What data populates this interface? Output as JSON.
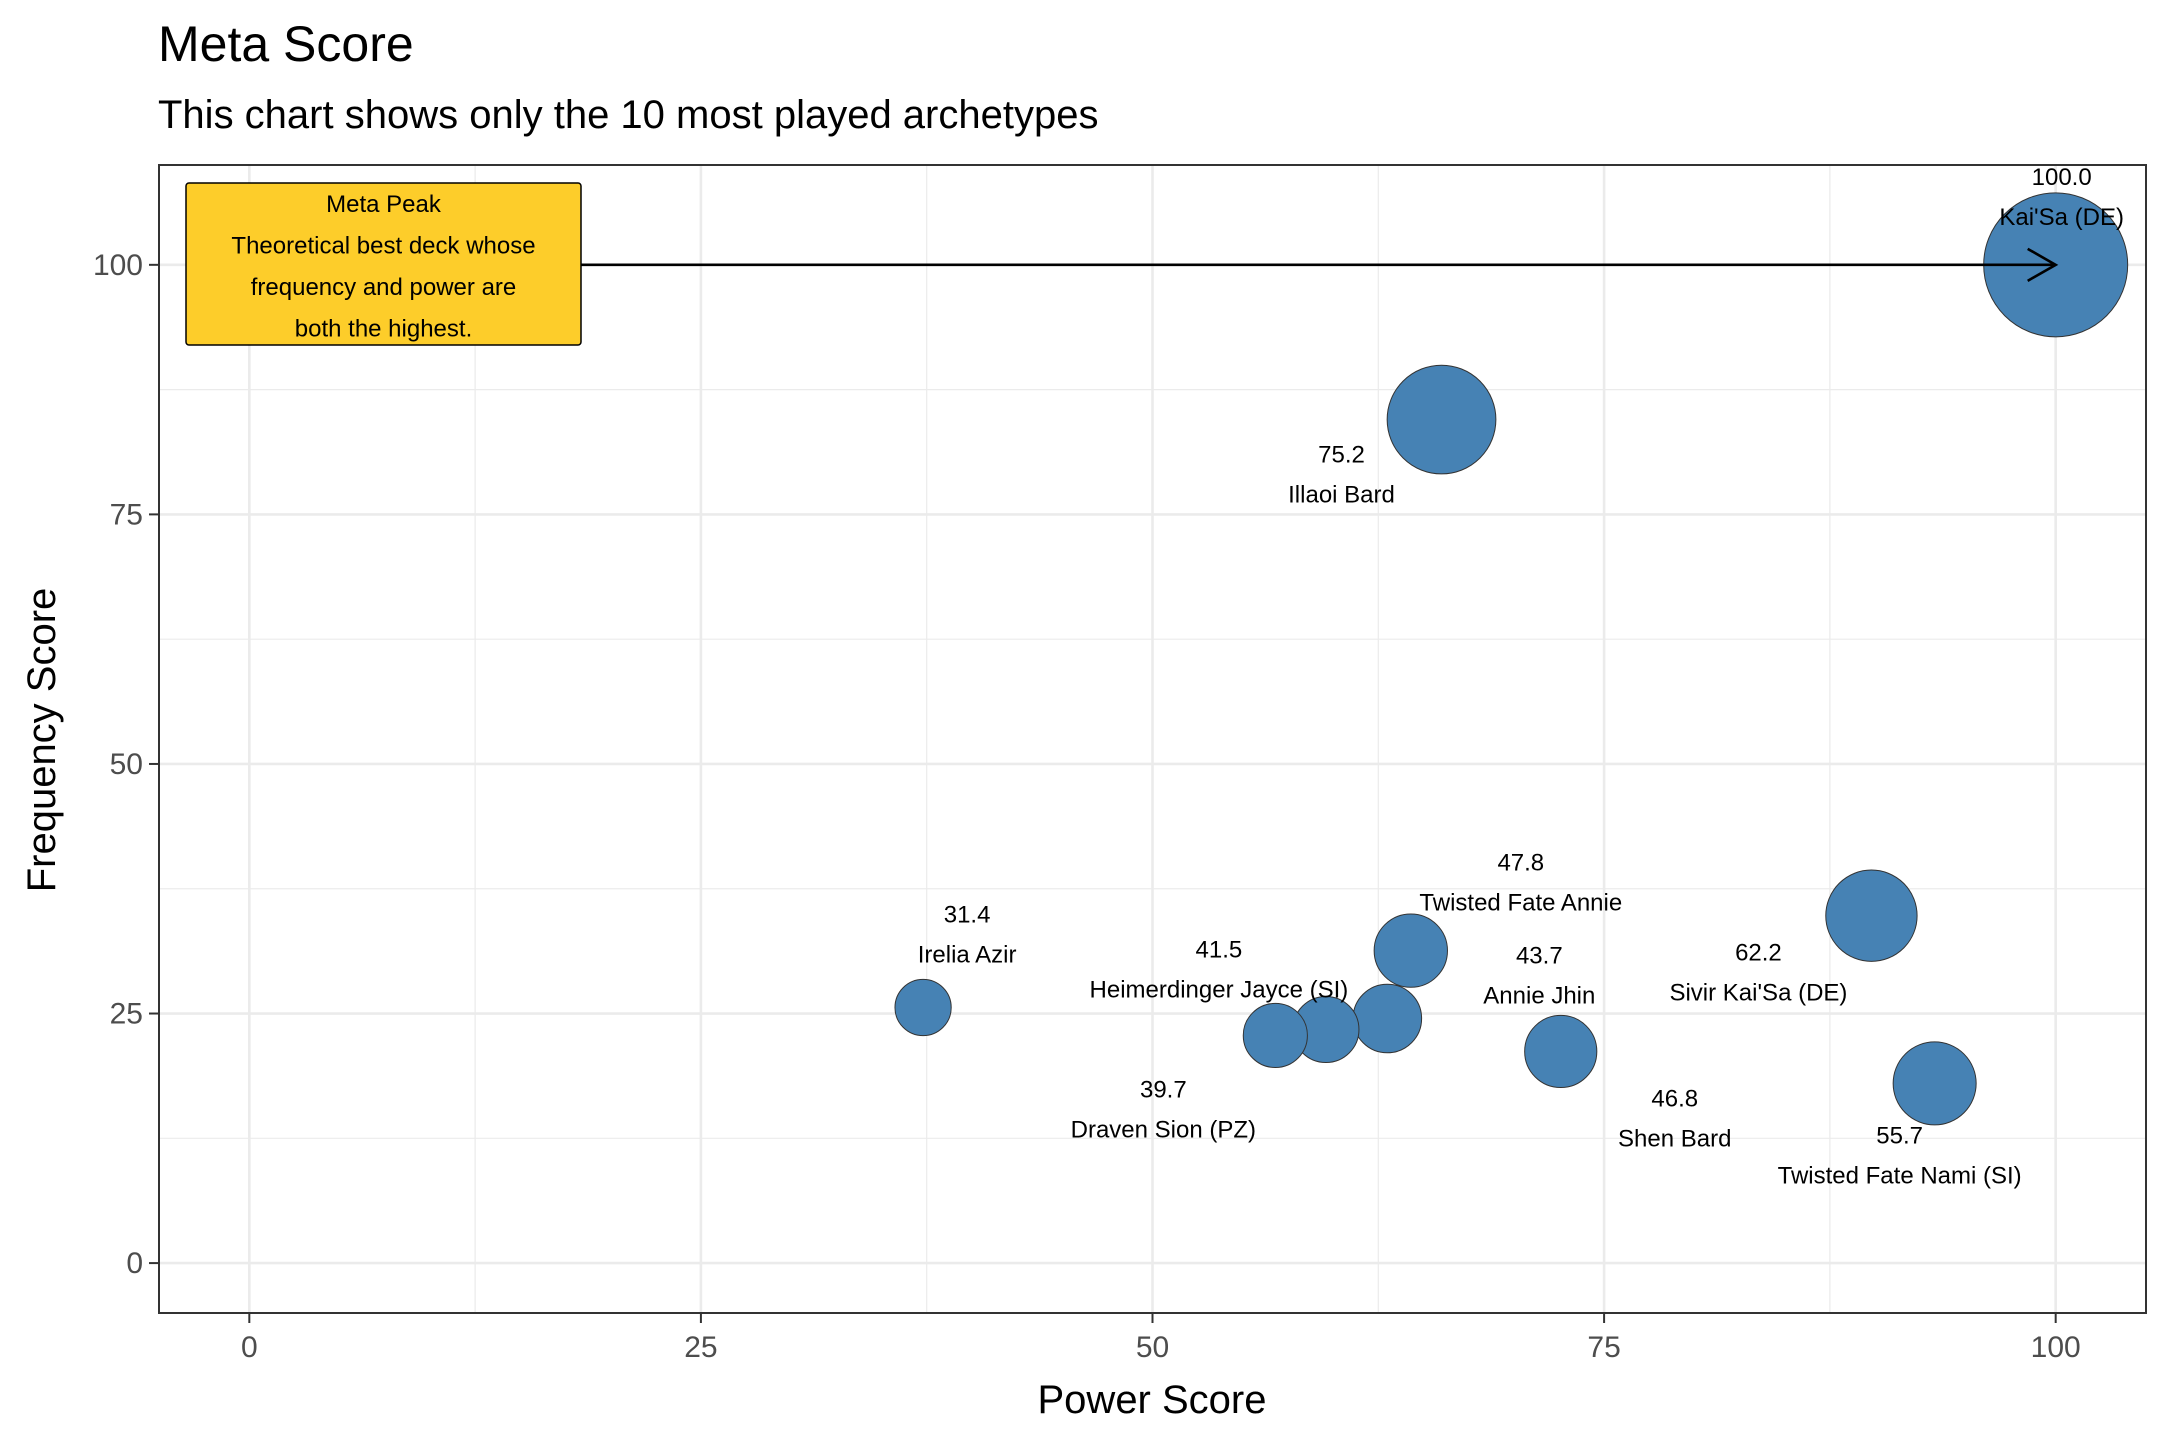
{
  "chart_data": {
    "type": "scatter",
    "title": "Meta Score",
    "subtitle": "This chart shows only the 10 most played archetypes",
    "xlabel": "Power Score",
    "ylabel": "Frequency Score",
    "xlim": [
      -5,
      105
    ],
    "ylim": [
      -5,
      110
    ],
    "x_ticks": [
      0,
      25,
      50,
      75,
      100
    ],
    "y_ticks": [
      0,
      25,
      50,
      75,
      100
    ],
    "x_tick_labels": [
      "0",
      "25",
      "50",
      "75",
      "100"
    ],
    "y_tick_labels": [
      "0",
      "25",
      "50",
      "75",
      "100"
    ],
    "grid": true,
    "legend": "none",
    "point_color": "#4682B4",
    "points": [
      {
        "name": "Kai'Sa (DE)",
        "score": "100.0",
        "x": 100.0,
        "y": 100.0
      },
      {
        "name": "Illaoi Bard",
        "score": "75.2",
        "x": 66.0,
        "y": 84.5
      },
      {
        "name": "Sivir Kai'Sa (DE)",
        "score": "62.2",
        "x": 89.8,
        "y": 34.8
      },
      {
        "name": "Twisted Fate Nami (SI)",
        "score": "55.7",
        "x": 93.3,
        "y": 18.0
      },
      {
        "name": "Twisted Fate Annie",
        "score": "47.8",
        "x": 64.3,
        "y": 31.3
      },
      {
        "name": "Shen Bard",
        "score": "46.8",
        "x": 72.6,
        "y": 21.2
      },
      {
        "name": "Annie Jhin",
        "score": "43.7",
        "x": 63.0,
        "y": 24.5
      },
      {
        "name": "Heimerdinger Jayce (SI)",
        "score": "41.5",
        "x": 59.6,
        "y": 23.4
      },
      {
        "name": "Draven Sion (PZ)",
        "score": "39.7",
        "x": 56.8,
        "y": 22.8
      },
      {
        "name": "Irelia Azir",
        "score": "31.4",
        "x": 37.3,
        "y": 25.6
      }
    ],
    "annotation": {
      "lines": [
        "Meta Peak",
        "Theoretical best deck whose",
        "frequency and power are",
        "both the highest."
      ],
      "fill": "#FDCD2A",
      "arrow_target": {
        "x": 100,
        "y": 100
      }
    }
  }
}
